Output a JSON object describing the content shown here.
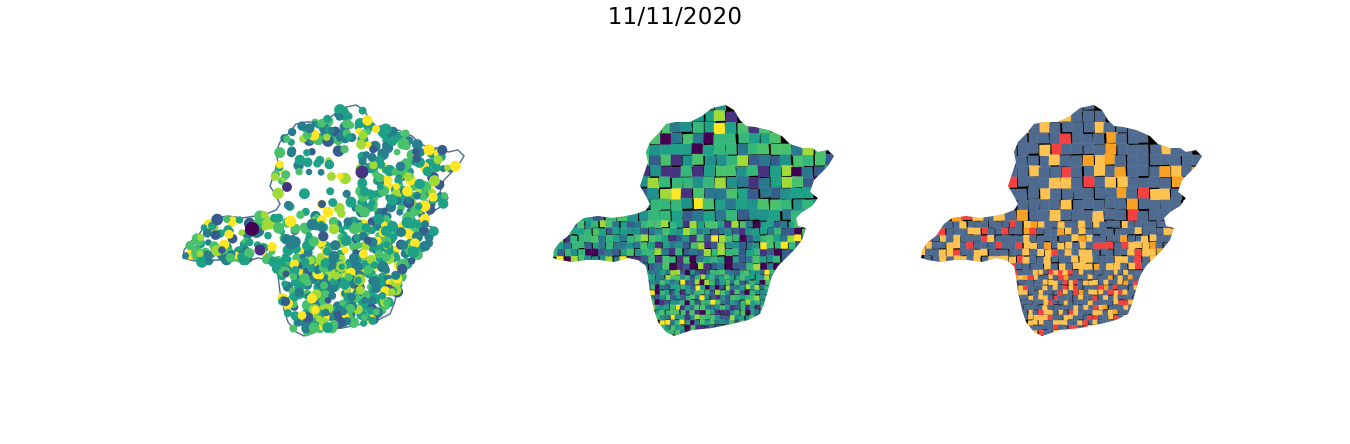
{
  "figure": {
    "title": "11/11/2020"
  },
  "palettes": {
    "viridis": [
      "#440154",
      "#46327e",
      "#365c8d",
      "#277f8e",
      "#1fa187",
      "#4ac16d",
      "#a0da39",
      "#fde725"
    ],
    "viridis_dominant": [
      "#1fa187",
      "#21918c",
      "#2a788e",
      "#35b779",
      "#4ac16d"
    ],
    "category": {
      "base": "#4f6a8f",
      "yellow": "#fdc24f",
      "orange": "#f7a022",
      "red": "#f44040"
    },
    "outline": "#4f6a8f"
  },
  "maps": [
    {
      "name": "proportional-symbol-map",
      "style": "points"
    },
    {
      "name": "choropleth-map",
      "style": "viridis"
    },
    {
      "name": "classification-map",
      "style": "category"
    }
  ]
}
